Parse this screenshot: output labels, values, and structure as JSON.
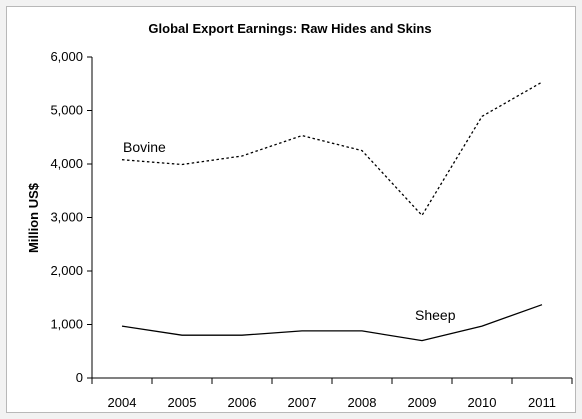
{
  "chart_data": {
    "type": "line",
    "title": "Global Export Earnings: Raw Hides and Skins",
    "xlabel": "",
    "ylabel": "Million US$",
    "categories": [
      "2004",
      "2005",
      "2006",
      "2007",
      "2008",
      "2009",
      "2010",
      "2011"
    ],
    "ylim": [
      0,
      6000
    ],
    "yticks": [
      0,
      1000,
      2000,
      3000,
      4000,
      5000,
      6000
    ],
    "ytick_labels": [
      "0",
      "1,000",
      "2,000",
      "3,000",
      "4,000",
      "5,000",
      "6,000"
    ],
    "grid": false,
    "legend": "none",
    "series": [
      {
        "name": "Bovine",
        "values": [
          4080,
          3990,
          4150,
          4530,
          4250,
          3040,
          4890,
          5530
        ],
        "line_style": "dotted",
        "color": "#000000"
      },
      {
        "name": "Sheep",
        "values": [
          970,
          800,
          800,
          880,
          880,
          700,
          970,
          1370
        ],
        "line_style": "solid",
        "color": "#000000"
      }
    ]
  }
}
